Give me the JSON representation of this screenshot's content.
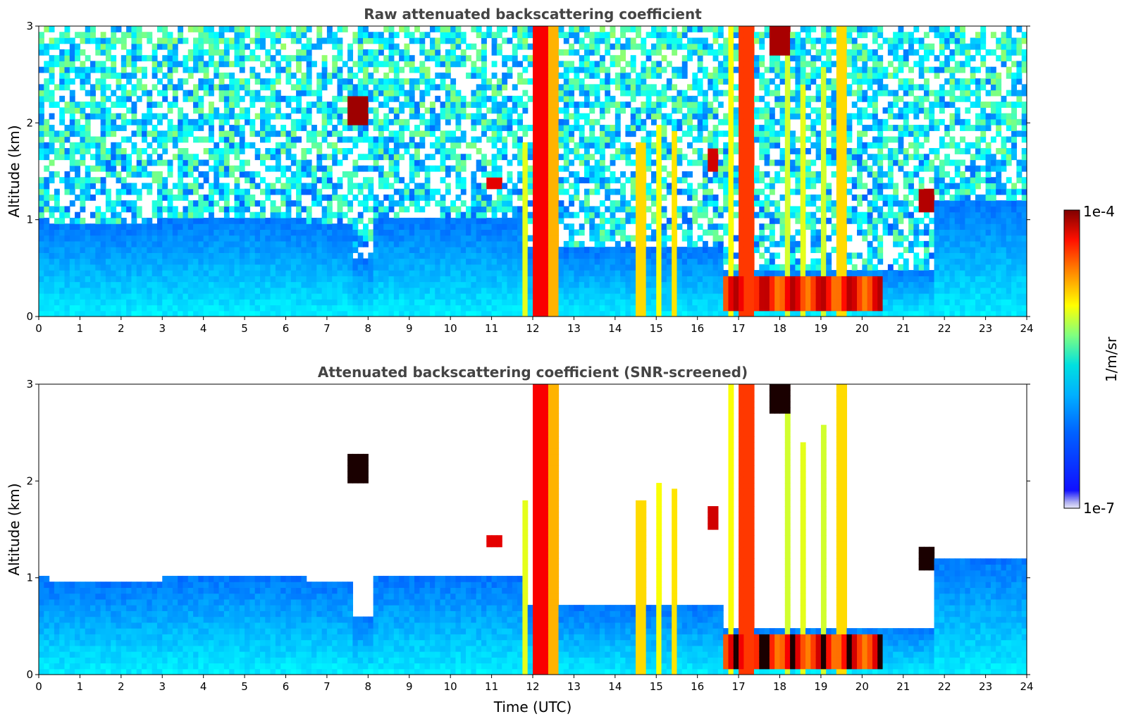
{
  "chart_data": [
    {
      "type": "heatmap",
      "title": "Raw attenuated backscattering coefficient",
      "xlabel": "",
      "ylabel": "Altitude (km)",
      "xlim": [
        0,
        24
      ],
      "ylim": [
        0,
        3
      ],
      "x_ticks": [
        "0",
        "1",
        "2",
        "3",
        "4",
        "5",
        "6",
        "7",
        "8",
        "9",
        "10",
        "11",
        "12",
        "13",
        "14",
        "15",
        "16",
        "17",
        "18",
        "19",
        "20",
        "21",
        "22",
        "23",
        "24"
      ],
      "y_ticks": [
        "0",
        "1",
        "2",
        "3"
      ],
      "variant": "raw",
      "features": [
        {
          "t_start": 0.0,
          "t_end": 11.8,
          "description_level": "aerosol_boundary_layer_top_km",
          "value": 1.0
        },
        {
          "t_start": 7.5,
          "t_end": 8.0,
          "altitude_km": [
            1.9,
            2.3
          ],
          "level": "high"
        },
        {
          "t_start": 12.0,
          "t_end": 12.5,
          "altitude_km": [
            0.0,
            3.0
          ],
          "level": "very_high"
        },
        {
          "t_start": 14.5,
          "t_end": 15.5,
          "altitude_km": [
            0.0,
            1.9
          ],
          "level": "high"
        },
        {
          "t_start": 16.6,
          "t_end": 20.5,
          "altitude_km": [
            0.0,
            0.5
          ],
          "level": "very_high"
        },
        {
          "t_start": 17.8,
          "t_end": 18.3,
          "altitude_km": [
            2.7,
            3.0
          ],
          "level": "very_high"
        },
        {
          "t_start": 21.4,
          "t_end": 21.7,
          "altitude_km": [
            1.1,
            1.3
          ],
          "level": "very_high"
        },
        {
          "t_start": 21.8,
          "t_end": 24.0,
          "description_level": "aerosol_boundary_layer_top_km",
          "value": 1.2
        }
      ]
    },
    {
      "type": "heatmap",
      "title": "Attenuated backscattering coefficient (SNR-screened)",
      "xlabel": "Time (UTC)",
      "ylabel": "Altitude (km)",
      "xlim": [
        0,
        24
      ],
      "ylim": [
        0,
        3
      ],
      "x_ticks": [
        "0",
        "1",
        "2",
        "3",
        "4",
        "5",
        "6",
        "7",
        "8",
        "9",
        "10",
        "11",
        "12",
        "13",
        "14",
        "15",
        "16",
        "17",
        "18",
        "19",
        "20",
        "21",
        "22",
        "23",
        "24"
      ],
      "y_ticks": [
        "0",
        "1",
        "2",
        "3"
      ],
      "variant": "screened"
    }
  ],
  "colorbar": {
    "label": "1/m/sr",
    "max_label": "1e-4",
    "min_label": "1e-7",
    "colormap": "jet",
    "colors": [
      "#e6e6f5",
      "#0000ff",
      "#00a0ff",
      "#00e6e6",
      "#78ff78",
      "#ffff00",
      "#ff8c00",
      "#ff0000",
      "#800000"
    ]
  }
}
